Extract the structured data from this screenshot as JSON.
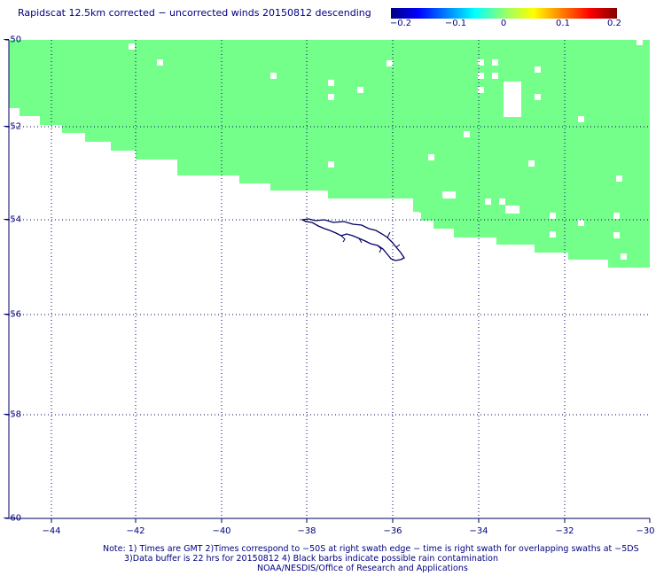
{
  "title": "Rapidscat 12.5km corrected − uncorrected winds 20150812 descending",
  "colorbar": {
    "ticks": [
      "−0.2",
      "−0.1",
      "0",
      "0.1",
      "0.2"
    ],
    "range": [
      -0.2,
      0.2
    ],
    "colors": [
      "#000080",
      "#0000ff",
      "#00ffff",
      "#ffff00",
      "#ff0000",
      "#800000"
    ]
  },
  "axes": {
    "lat_labels": [
      "−50",
      "−52",
      "−54",
      "−56",
      "−58",
      "−60"
    ],
    "lon_labels": [
      "−44",
      "−42",
      "−40",
      "−38",
      "−36",
      "−34",
      "−32",
      "−30"
    ],
    "grid": "dotted",
    "lon_range": [
      -44.9,
      -30
    ],
    "lat_range": [
      -60,
      -50
    ]
  },
  "field_color": "#74ff8a",
  "coastline_color": "#000060",
  "notes": {
    "line1": "Note: 1) Times are GMT 2)Times correspond to −50S at right swath edge − time is right swath for overlapping swaths at −5DS",
    "line2": "3)Data buffer is 22 hrs for 20150812 4) Black barbs indicate possible rain contamination",
    "line3": "NOAA/NESDIS/Office of Research and Applications"
  }
}
